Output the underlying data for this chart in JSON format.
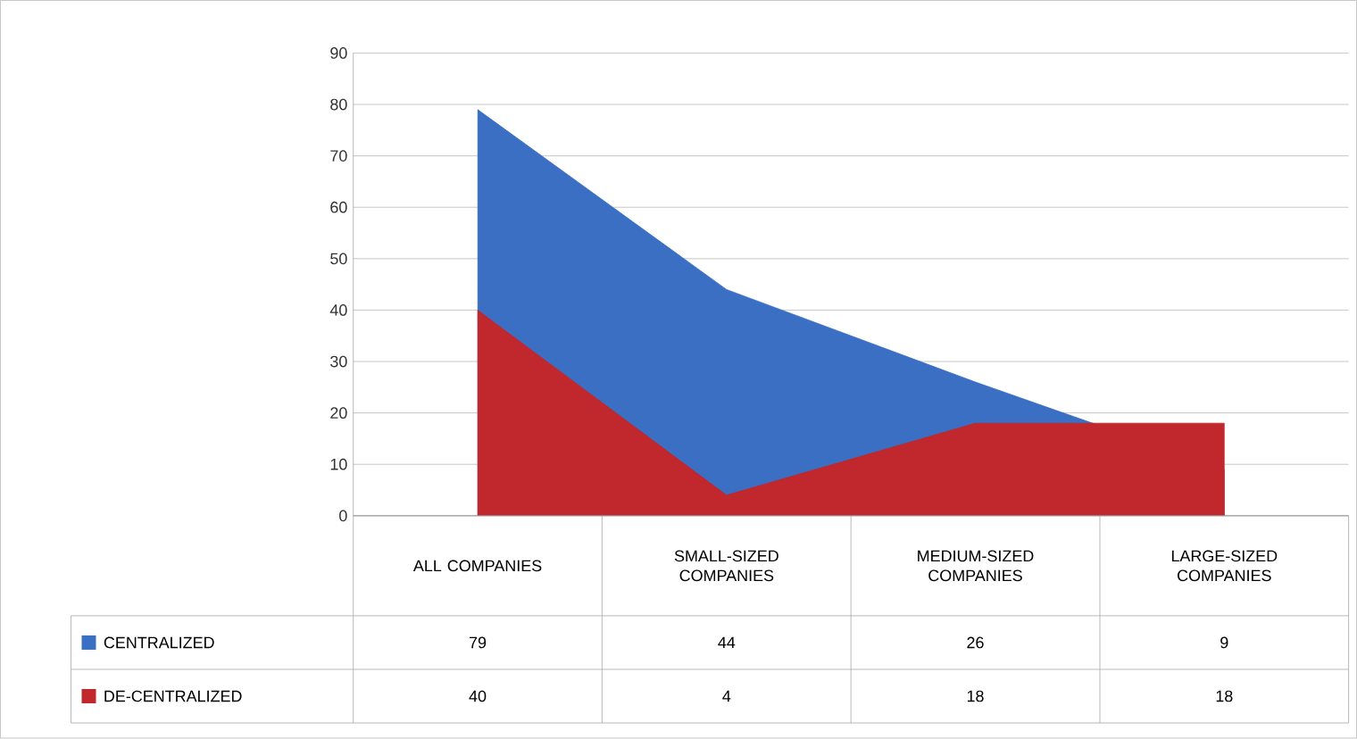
{
  "chart_data": {
    "type": "area",
    "categories": [
      "ALL COMPANIES",
      "SMALL-SIZED COMPANIES",
      "MEDIUM-SIZED COMPANIES",
      "LARGE-SIZED COMPANIES"
    ],
    "series": [
      {
        "name": "CENTRALIZED",
        "color": "#3a6fc4",
        "values": [
          79,
          44,
          26,
          9
        ]
      },
      {
        "name": "DE-CENTRALIZED",
        "color": "#c0282d",
        "values": [
          40,
          4,
          18,
          18
        ]
      }
    ],
    "ylim": [
      0,
      90
    ],
    "yticks": [
      0,
      10,
      20,
      30,
      40,
      50,
      60,
      70,
      80,
      90
    ],
    "grid": "y",
    "legend": "bottom",
    "data_labels": true
  }
}
